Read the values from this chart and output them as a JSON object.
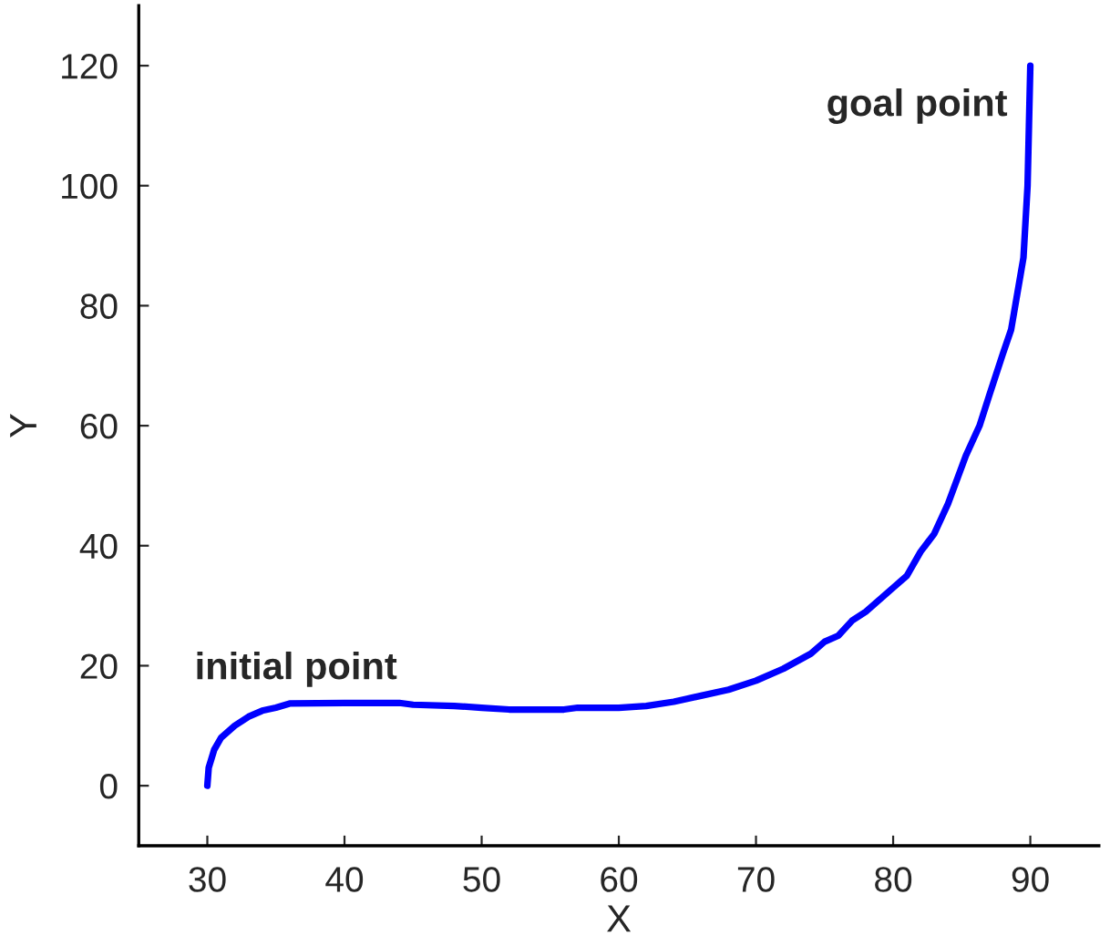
{
  "chart_data": {
    "type": "line",
    "xlabel": "X",
    "ylabel": "Y",
    "xlim": [
      25,
      95
    ],
    "xticks": [
      30,
      40,
      50,
      60,
      70,
      80,
      90
    ],
    "ylim": [
      -10,
      130
    ],
    "yticks": [
      0,
      20,
      40,
      60,
      80,
      100,
      120
    ],
    "grid": false,
    "legend": false,
    "marker": "none",
    "line_style": "solid",
    "series": [
      {
        "color": "#0000ff",
        "x": [
          30,
          30.1,
          30.5,
          31,
          32,
          33,
          34,
          35,
          36,
          40,
          44,
          45,
          48,
          50,
          52,
          56,
          57,
          60,
          62,
          64,
          66,
          68,
          70,
          72,
          74,
          75,
          76,
          77,
          78,
          80,
          81,
          82,
          83,
          84,
          85.3,
          86.3,
          87,
          88,
          88.6,
          89.2,
          89.5,
          89.8,
          89.9,
          90
        ],
        "values": [
          0,
          3,
          6,
          8,
          10,
          11.5,
          12.5,
          13,
          13.7,
          13.8,
          13.8,
          13.5,
          13.3,
          13,
          12.7,
          12.7,
          13,
          13,
          13.3,
          14,
          15,
          16,
          17.5,
          19.5,
          22,
          24,
          25,
          27.5,
          29,
          33,
          35,
          39,
          42,
          47,
          55,
          60,
          65,
          72,
          76,
          84,
          88,
          100,
          110,
          120
        ]
      }
    ],
    "annotations": [
      {
        "text": "initial point",
        "x": 30,
        "y": 0
      },
      {
        "text": "goal point",
        "x": 90,
        "y": 120
      }
    ]
  }
}
